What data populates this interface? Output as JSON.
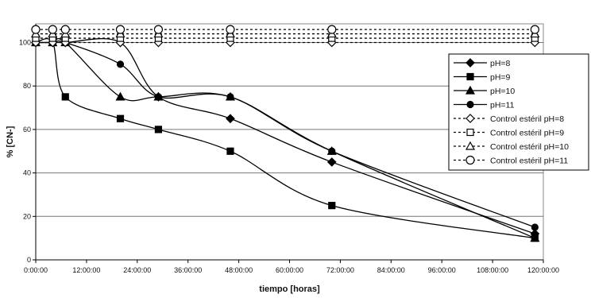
{
  "chart_data": {
    "type": "line",
    "title": "",
    "xlabel": "tiempo [horas]",
    "ylabel": "% [CN-]",
    "xlim": [
      0,
      120
    ],
    "ylim": [
      0,
      100
    ],
    "x_ticks": [
      0,
      12,
      24,
      36,
      48,
      60,
      72,
      84,
      96,
      108,
      120
    ],
    "x_tick_labels": [
      "0:00:00",
      "12:00:00",
      "24:00:00",
      "36:00:00",
      "48:00:00",
      "60:00:00",
      "72:00:00",
      "84:00:00",
      "96:00:00",
      "108:00:00",
      "120:00:00"
    ],
    "y_ticks": [
      0,
      20,
      40,
      60,
      80,
      100
    ],
    "y_tick_labels": [
      "0",
      "20",
      "40",
      "60",
      "80",
      "100"
    ],
    "grid": "horizontal",
    "legend_position": "right",
    "series": [
      {
        "name": "pH=8",
        "marker": "diamond",
        "filled": true,
        "dashed": false,
        "color": "#000000",
        "x": [
          0,
          4,
          7,
          20,
          29,
          46,
          70,
          118
        ],
        "y": [
          100,
          100,
          100,
          100,
          75,
          65,
          45,
          12
        ]
      },
      {
        "name": "pH=9",
        "marker": "square",
        "filled": true,
        "dashed": false,
        "color": "#000000",
        "x": [
          0,
          4,
          7,
          20,
          29,
          46,
          70,
          118
        ],
        "y": [
          100,
          100,
          75,
          65,
          60,
          50,
          25,
          10
        ]
      },
      {
        "name": "pH=10",
        "marker": "triangle",
        "filled": true,
        "dashed": false,
        "color": "#000000",
        "x": [
          0,
          4,
          7,
          20,
          29,
          46,
          70,
          118
        ],
        "y": [
          100,
          100,
          100,
          75,
          75,
          75,
          50,
          10
        ]
      },
      {
        "name": "pH=11",
        "marker": "circle",
        "filled": true,
        "dashed": false,
        "color": "#000000",
        "x": [
          0,
          4,
          7,
          20,
          29,
          46,
          70,
          118
        ],
        "y": [
          100,
          100,
          100,
          90,
          75,
          75,
          50,
          15
        ]
      },
      {
        "name": "Control estéril pH=8",
        "marker": "diamond",
        "filled": false,
        "dashed": true,
        "color": "#000000",
        "x": [
          0,
          4,
          7,
          20,
          29,
          46,
          70,
          118
        ],
        "y": [
          100,
          100,
          100,
          100,
          100,
          100,
          100,
          100
        ]
      },
      {
        "name": "Control estéril pH=9",
        "marker": "square",
        "filled": false,
        "dashed": true,
        "color": "#000000",
        "x": [
          0,
          4,
          7,
          20,
          29,
          46,
          70,
          118
        ],
        "y": [
          102,
          102,
          102,
          102,
          102,
          102,
          102,
          102
        ]
      },
      {
        "name": "Control estéril pH=10",
        "marker": "triangle",
        "filled": false,
        "dashed": true,
        "color": "#000000",
        "x": [
          0,
          4,
          7,
          20,
          29,
          46,
          70,
          118
        ],
        "y": [
          104,
          104,
          104,
          104,
          104,
          104,
          104,
          104
        ]
      },
      {
        "name": "Control estéril pH=11",
        "marker": "circle",
        "filled": false,
        "dashed": true,
        "color": "#000000",
        "x": [
          0,
          4,
          7,
          20,
          29,
          46,
          70,
          118
        ],
        "y": [
          106,
          106,
          106,
          106,
          106,
          106,
          106,
          106
        ]
      }
    ]
  }
}
